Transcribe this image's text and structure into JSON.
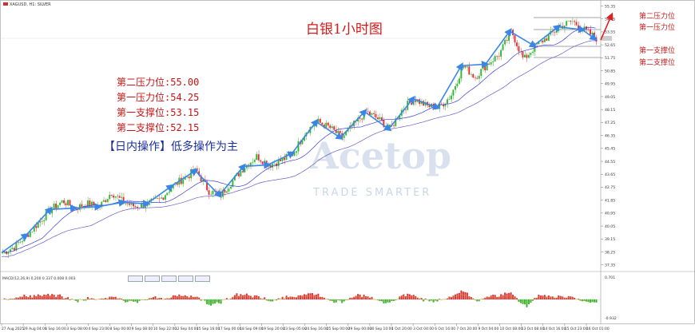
{
  "chart_header": "XAGUSD, H1: SILVER",
  "title": "白银1小时图",
  "levels": [
    {
      "label": "第二压力位:",
      "value": "55.00"
    },
    {
      "label": "第一压力位:",
      "value": "54.25"
    },
    {
      "label": "第一支撑位:",
      "value": "53.15"
    },
    {
      "label": "第二支撑位:",
      "value": "52.15"
    }
  ],
  "strategy_note": "【日内操作】低多操作为主",
  "right_labels": {
    "r2": "第二压力位",
    "r1": "第一压力位",
    "s1": "第一支撑位",
    "s2": "第二支撑位"
  },
  "watermark": {
    "brand": "Acetop",
    "tagline": "TRADE SMARTER"
  },
  "macd_label": "MACD(12,26,9) 0.200 0.337 0.008 0.003",
  "colors": {
    "up": "#2eb82e",
    "down": "#e03030",
    "arrow": "#3a86e6",
    "ma": "#3b3bd6",
    "level_line": "#888888",
    "pred_arrow": "#e02020"
  },
  "chart_data": {
    "type": "candlestick",
    "title": "白银1小时图",
    "y_ticks": [
      "55.35",
      "54.45",
      "53.55",
      "52.65",
      "51.75",
      "50.85",
      "49.95",
      "49.05",
      "48.15",
      "47.25",
      "46.35",
      "45.45",
      "44.55",
      "43.65",
      "42.75",
      "41.85",
      "40.95",
      "40.05",
      "39.15",
      "38.25",
      "37.35"
    ],
    "ylim": [
      37.0,
      55.6
    ],
    "x_ticks": [
      "27 Aug 2025",
      "29 Aug 04:00",
      "1 Sep 16:00",
      "3 Sep 08:00",
      "4 Sep 23:00",
      "8 Sep 00:00",
      "9 Sep 08:00",
      "10 Sep 22:00",
      "12 Sep 04:00",
      "15 Sep 16:00",
      "17 Sep 00:00",
      "18 Sep 09:00",
      "19 Sep 20:00",
      "23 Sep 05:00",
      "24 Sep 16:00",
      "25 Sep 00:00",
      "29 Sep 00:00",
      "30 Sep 10:00",
      "1 Oct 20:00",
      "3 Oct 04:00",
      "6 Oct 16:00",
      "7 Oct 20:00",
      "9 Oct 04:00",
      "10 Oct 08:00",
      "13 Oct 08:00",
      "14 Oct 16:00",
      "15 Oct 23:00",
      "16 Oct 01:00"
    ],
    "price_path": [
      38.2,
      38.6,
      39.4,
      40.3,
      41.2,
      41.8,
      41.3,
      41.6,
      41.4,
      42.4,
      41.7,
      41.4,
      41.6,
      41.9,
      42.8,
      43.4,
      43.9,
      42.5,
      42.2,
      43.2,
      44.2,
      44.9,
      44.3,
      44.6,
      45.1,
      46.6,
      47.3,
      46.9,
      46.2,
      47.1,
      48.0,
      47.5,
      46.8,
      48.2,
      48.9,
      48.4,
      48.3,
      49.1,
      51.2,
      50.4,
      51.3,
      52.0,
      53.6,
      51.6,
      52.6,
      53.2,
      53.9,
      54.3,
      53.7,
      53.1
    ],
    "levels": {
      "resistance_2": 55.0,
      "resistance_1": 54.25,
      "support_1": 53.15,
      "support_2": 52.15
    },
    "macd_range": [
      -0.932,
      0.701
    ]
  }
}
